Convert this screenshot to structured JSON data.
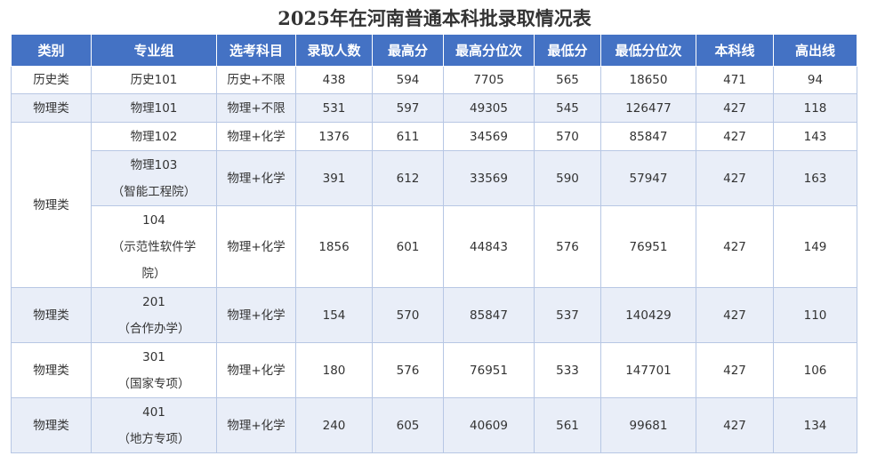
{
  "title": "2025年在河南普通本科批录取情况表",
  "headers": [
    "类别",
    "专业组",
    "选考科目",
    "录取人数",
    "最高分",
    "最高分位次",
    "最低分",
    "最低分位次",
    "本科线",
    "高出线"
  ],
  "rows": [
    {
      "category": "历史类",
      "group": [
        "历史101"
      ],
      "subjects": "历史+不限",
      "admitted": "438",
      "max_score": "594",
      "max_rank": "7705",
      "min_score": "565",
      "min_rank": "18650",
      "line": "471",
      "above": "94"
    },
    {
      "category": "物理类",
      "group": [
        "物理101"
      ],
      "subjects": "物理+不限",
      "admitted": "531",
      "max_score": "597",
      "max_rank": "49305",
      "min_score": "545",
      "min_rank": "126477",
      "line": "427",
      "above": "118"
    },
    {
      "category": "物理类",
      "group": [
        "物理102"
      ],
      "subjects": "物理+化学",
      "admitted": "1376",
      "max_score": "611",
      "max_rank": "34569",
      "min_score": "570",
      "min_rank": "85847",
      "line": "427",
      "above": "143"
    },
    {
      "category": "物理类",
      "group": [
        "物理103",
        "（智能工程院）"
      ],
      "subjects": "物理+化学",
      "admitted": "391",
      "max_score": "612",
      "max_rank": "33569",
      "min_score": "590",
      "min_rank": "57947",
      "line": "427",
      "above": "163"
    },
    {
      "category": "物理类",
      "group": [
        "104",
        "（示范性软件学",
        "院）"
      ],
      "subjects": "物理+化学",
      "admitted": "1856",
      "max_score": "601",
      "max_rank": "44843",
      "min_score": "576",
      "min_rank": "76951",
      "line": "427",
      "above": "149"
    },
    {
      "category": "物理类",
      "group": [
        "201",
        "（合作办学）"
      ],
      "subjects": "物理+化学",
      "admitted": "154",
      "max_score": "570",
      "max_rank": "85847",
      "min_score": "537",
      "min_rank": "140429",
      "line": "427",
      "above": "110"
    },
    {
      "category": "物理类",
      "group": [
        "301",
        "（国家专项）"
      ],
      "subjects": "物理+化学",
      "admitted": "180",
      "max_score": "576",
      "max_rank": "76951",
      "min_score": "533",
      "min_rank": "147701",
      "line": "427",
      "above": "106"
    },
    {
      "category": "物理类",
      "group": [
        "401",
        "（地方专项）"
      ],
      "subjects": "物理+化学",
      "admitted": "240",
      "max_score": "605",
      "max_rank": "40609",
      "min_score": "561",
      "min_rank": "99681",
      "line": "427",
      "above": "134"
    }
  ],
  "colors": {
    "header_bg": "#4472c4",
    "header_text": "#ffffff",
    "row_alt": "#e9eef8",
    "border": "#b7c7e4"
  }
}
